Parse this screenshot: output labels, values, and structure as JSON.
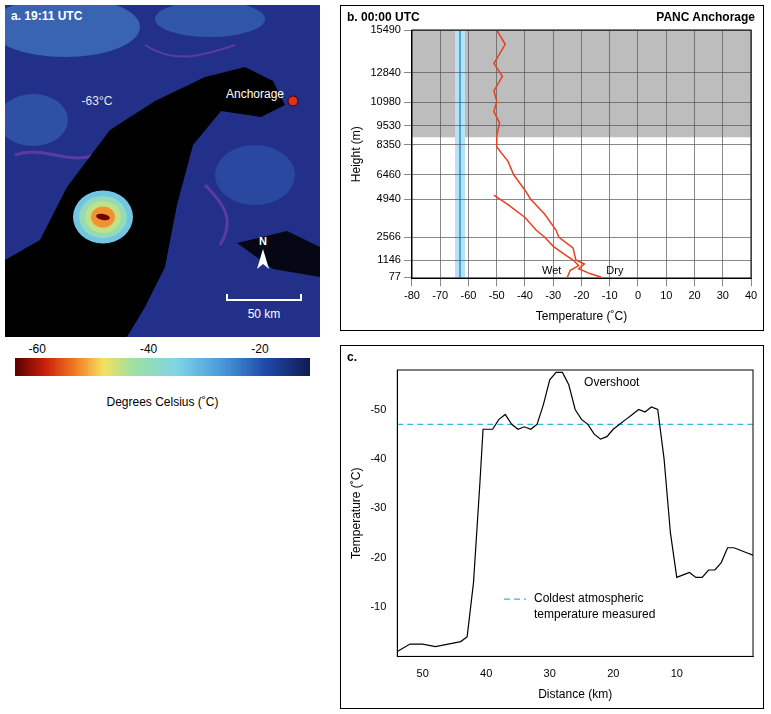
{
  "chart_data": [
    {
      "type": "map",
      "title": "a. 19:11 UTC",
      "labels": {
        "city": "Anchorage",
        "cloud_top": "-63°C",
        "north": "N"
      },
      "scale_bar": "50 km",
      "storm_temperatures": [
        -33,
        -40,
        -45,
        -52,
        -63
      ],
      "colorbar": {
        "title": "Degrees Celsius (˚C)",
        "range": [
          -64,
          -11
        ],
        "ticks": [
          -60,
          -40,
          -20
        ]
      }
    },
    {
      "type": "line",
      "title": "b. 00:00 UTC",
      "subtitle": "PANC Anchorage",
      "x_label": "Temperature (˚C)",
      "y_label": "Height (m)",
      "xlim": [
        -80,
        40
      ],
      "xticks": [
        -80,
        -70,
        -60,
        -50,
        -40,
        -30,
        -20,
        -10,
        0,
        10,
        20,
        30,
        40
      ],
      "ylim": [
        0,
        15490
      ],
      "yticks": [
        77,
        1146,
        2566,
        4940,
        6460,
        8350,
        9530,
        10980,
        12840,
        15490
      ],
      "grid": true,
      "shaded_heights": [
        8800,
        15490
      ],
      "cloud_top_temperature": -63,
      "series": [
        {
          "name": "Wet",
          "color": "#e8411e",
          "x": [
            -51,
            -46,
            -40,
            -36,
            -33,
            -30,
            -26,
            -23,
            -21,
            -24,
            -25
          ],
          "y": [
            5200,
            4600,
            3800,
            3000,
            2566,
            2000,
            1500,
            1146,
            800,
            500,
            77
          ]
        },
        {
          "name": "Dry",
          "color": "#e8411e",
          "x": [
            -50,
            -47,
            -51,
            -48,
            -51,
            -50,
            -51,
            -49,
            -50,
            -50,
            -46,
            -44,
            -40,
            -38,
            -33,
            -29,
            -28,
            -23,
            -22,
            -19,
            -21,
            -17,
            -13
          ],
          "y": [
            15490,
            14600,
            13400,
            12600,
            11700,
            11050,
            10400,
            9700,
            8900,
            8200,
            7300,
            6460,
            5500,
            4940,
            4000,
            3000,
            2566,
            1900,
            1146,
            900,
            600,
            300,
            77
          ]
        }
      ]
    },
    {
      "type": "line",
      "title": "c.",
      "x_label": "Distance (km)",
      "y_label": "Temperature (˚C)",
      "xlim": [
        54,
        -2
      ],
      "xticks": [
        10,
        20,
        30,
        40,
        50
      ],
      "ylim": [
        0,
        -58
      ],
      "yticks": [
        -10,
        -20,
        -30,
        -40,
        -50
      ],
      "grid": false,
      "color": "#000000",
      "x": [
        54,
        52,
        50,
        48,
        46,
        44,
        43,
        42,
        41,
        40.5,
        39,
        38,
        37,
        36,
        35,
        34,
        33,
        32,
        31,
        30,
        29,
        28,
        27,
        26,
        25,
        24,
        23,
        22,
        21,
        20,
        19,
        18,
        17,
        16,
        15,
        14,
        13,
        12,
        11,
        10,
        9,
        8,
        7,
        6,
        5,
        4,
        3,
        2,
        1,
        0,
        -1,
        -2
      ],
      "values": [
        -1,
        -2.5,
        -2.5,
        -2,
        -2.5,
        -3,
        -4,
        -15,
        -35,
        -46,
        -46,
        -48,
        -49,
        -47,
        -46,
        -46.5,
        -46,
        -47,
        -51,
        -56,
        -57.5,
        -57.5,
        -55,
        -50,
        -48,
        -47,
        -45,
        -44,
        -44.5,
        -46,
        -47,
        -48,
        -49,
        -50,
        -49.5,
        -50.5,
        -50,
        -40,
        -25,
        -16,
        -16.5,
        -17,
        -16,
        -16,
        -17.5,
        -17.5,
        -19,
        -22,
        -22,
        -21.5,
        -21,
        -20.5
      ],
      "annotations": [
        "Overshoot"
      ],
      "reference_line": {
        "value": -47,
        "label": "Coldest atmospheric temperature measured",
        "color": "#3ab4d8",
        "line_style": "dashed"
      }
    }
  ]
}
